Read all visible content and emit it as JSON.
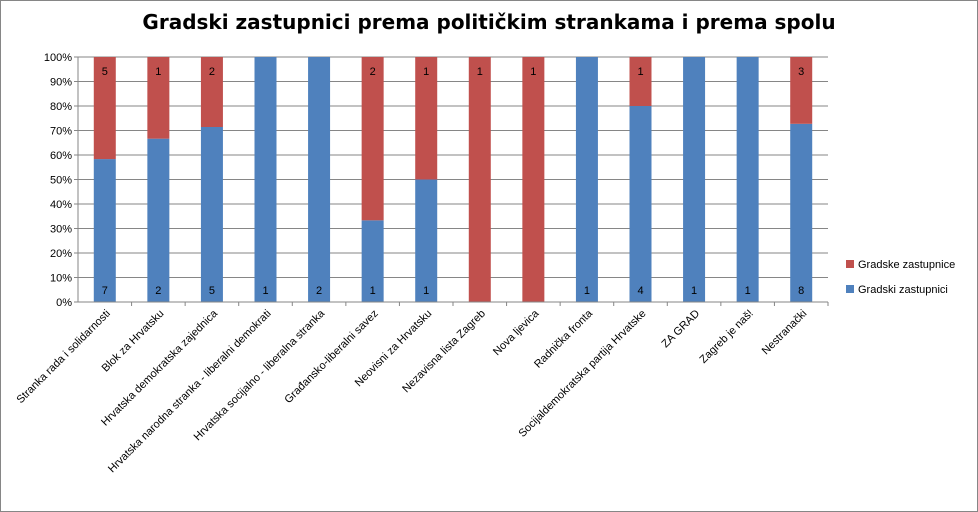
{
  "chart_data": {
    "type": "bar",
    "stacked": "percent",
    "title": "Gradski zastupnici prema političkim strankama i prema spolu",
    "categories": [
      "Stranka rada i solidarnosti",
      "Blok za Hrvatsku",
      "Hrvatska demokratska zajednica",
      "Hrvatska narodna stranka - liberalni demokrati",
      "Hrvatska socijalno - liberalna stranka",
      "Građansko-liberalni savez",
      "Neovisni za Hrvatsku",
      "Nezavisna lista Zagreb",
      "Nova ljevica",
      "Radnička fronta",
      "Socijaldemokratska partija Hrvatske",
      "ZA GRAD",
      "Zagreb je naš!",
      "Nestranački"
    ],
    "series": [
      {
        "name": "Gradski zastupnici",
        "color": "#4F81BD",
        "values": [
          7,
          2,
          5,
          1,
          2,
          1,
          1,
          0,
          0,
          1,
          4,
          1,
          1,
          8
        ]
      },
      {
        "name": "Gradske zastupnice",
        "color": "#C0504D",
        "values": [
          5,
          1,
          2,
          0,
          0,
          2,
          1,
          1,
          1,
          0,
          1,
          0,
          0,
          3
        ]
      }
    ],
    "y_ticks": [
      "0%",
      "10%",
      "20%",
      "30%",
      "40%",
      "50%",
      "60%",
      "70%",
      "80%",
      "90%",
      "100%"
    ],
    "ylim": [
      0,
      100
    ],
    "grid": true,
    "legend_position": "right"
  }
}
